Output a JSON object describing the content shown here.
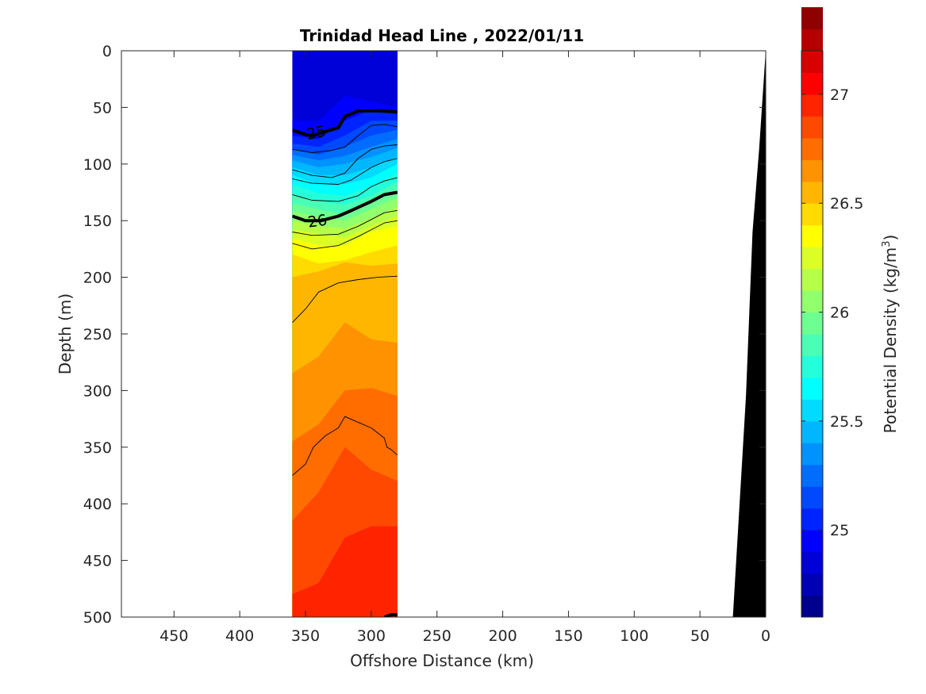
{
  "chart_data": {
    "type": "heatmap",
    "title": "Trinidad Head Line , 2022/01/11",
    "xlabel": "Offshore Distance (km)",
    "ylabel": "Depth (m)",
    "colorbar_label": "Potential Density (kg/m",
    "colorbar_label_sup": "3",
    "colorbar_label_end": ")",
    "xlim": [
      490,
      0
    ],
    "x_reversed": true,
    "ylim": [
      0,
      500
    ],
    "y_reversed": true,
    "x_ticks": [
      450,
      400,
      350,
      300,
      250,
      200,
      150,
      100,
      50,
      0
    ],
    "y_ticks": [
      0,
      50,
      100,
      150,
      200,
      250,
      300,
      350,
      400,
      450,
      500
    ],
    "colorbar_range": [
      24.6,
      27.2
    ],
    "colorbar_step": 0.1,
    "colorbar_ticks": [
      25,
      25.5,
      26,
      26.5,
      27
    ],
    "data_x_extent": [
      360,
      280
    ],
    "colormap": [
      "#00008f",
      "#0000b4",
      "#0000d9",
      "#0000ff",
      "#0024ff",
      "#0049ff",
      "#006dff",
      "#0092ff",
      "#00b6ff",
      "#00dbff",
      "#00ffff",
      "#24ffdb",
      "#49ffb6",
      "#6dff92",
      "#92ff6d",
      "#b6ff49",
      "#dbff24",
      "#ffff00",
      "#ffdb00",
      "#ffb600",
      "#ff9200",
      "#ff6d00",
      "#ff4900",
      "#ff2400",
      "#ff0000",
      "#d90000",
      "#b40000",
      "#8f0000"
    ],
    "fill_bands": [
      {
        "value": 24.85,
        "top_depths": [
          0,
          0,
          0,
          0,
          0
        ]
      },
      {
        "value": 24.95,
        "top_depths": [
          62,
          62,
          40,
          45,
          50
        ]
      },
      {
        "value": 25.05,
        "top_depths": [
          75,
          78,
          62,
          52,
          56
        ]
      },
      {
        "value": 25.15,
        "top_depths": [
          82,
          85,
          75,
          62,
          62
        ]
      },
      {
        "value": 25.25,
        "top_depths": [
          87,
          92,
          85,
          75,
          70
        ]
      },
      {
        "value": 25.35,
        "top_depths": [
          92,
          97,
          93,
          85,
          78
        ]
      },
      {
        "value": 25.45,
        "top_depths": [
          97,
          103,
          100,
          94,
          86
        ]
      },
      {
        "value": 25.55,
        "top_depths": [
          103,
          110,
          110,
          103,
          94
        ]
      },
      {
        "value": 25.65,
        "top_depths": [
          110,
          118,
          118,
          112,
          100
        ]
      },
      {
        "value": 25.75,
        "top_depths": [
          118,
          126,
          128,
          120,
          108
        ]
      },
      {
        "value": 25.85,
        "top_depths": [
          126,
          133,
          136,
          128,
          116
        ]
      },
      {
        "value": 25.95,
        "top_depths": [
          135,
          140,
          145,
          133,
          122
        ]
      },
      {
        "value": 26.05,
        "top_depths": [
          142,
          147,
          150,
          140,
          130
        ]
      },
      {
        "value": 26.15,
        "top_depths": [
          150,
          155,
          157,
          148,
          138
        ]
      },
      {
        "value": 26.25,
        "top_depths": [
          158,
          162,
          165,
          155,
          146
        ]
      },
      {
        "value": 26.35,
        "top_depths": [
          166,
          172,
          172,
          160,
          155
        ]
      },
      {
        "value": 26.45,
        "top_depths": [
          180,
          188,
          185,
          178,
          172
        ]
      },
      {
        "value": 26.55,
        "top_depths": [
          200,
          195,
          187,
          190,
          188
        ]
      },
      {
        "value": 26.65,
        "top_depths": [
          285,
          270,
          240,
          255,
          258
        ]
      },
      {
        "value": 26.75,
        "top_depths": [
          345,
          330,
          300,
          298,
          305
        ]
      },
      {
        "value": 26.85,
        "top_depths": [
          415,
          390,
          350,
          370,
          380
        ]
      },
      {
        "value": 26.95,
        "top_depths": [
          480,
          470,
          430,
          420,
          420
        ]
      }
    ],
    "band_x_positions": [
      360,
      340,
      320,
      300,
      280
    ],
    "contours": [
      {
        "level": 25,
        "bold": true,
        "label": "25",
        "label_x": 342,
        "label_y": 72,
        "points": [
          [
            360,
            70
          ],
          [
            350,
            74
          ],
          [
            345,
            75
          ],
          [
            334,
            71
          ],
          [
            325,
            68
          ],
          [
            320,
            58
          ],
          [
            310,
            53
          ],
          [
            295,
            53
          ],
          [
            280,
            54
          ]
        ]
      },
      {
        "level": 25.2,
        "bold": false,
        "points": [
          [
            360,
            87
          ],
          [
            345,
            90
          ],
          [
            330,
            88
          ],
          [
            320,
            85
          ],
          [
            310,
            75
          ],
          [
            300,
            66
          ],
          [
            290,
            65
          ],
          [
            280,
            67
          ]
        ]
      },
      {
        "level": 25.4,
        "bold": false,
        "points": [
          [
            360,
            105
          ],
          [
            345,
            110
          ],
          [
            330,
            112
          ],
          [
            320,
            108
          ],
          [
            310,
            95
          ],
          [
            300,
            87
          ],
          [
            290,
            84
          ],
          [
            280,
            83
          ]
        ]
      },
      {
        "level": 25.6,
        "bold": false,
        "points": [
          [
            360,
            113
          ],
          [
            345,
            117
          ],
          [
            325,
            118
          ],
          [
            315,
            114
          ],
          [
            300,
            103
          ],
          [
            290,
            98
          ],
          [
            280,
            95
          ]
        ]
      },
      {
        "level": 25.8,
        "bold": false,
        "points": [
          [
            360,
            127
          ],
          [
            345,
            132
          ],
          [
            325,
            133
          ],
          [
            310,
            128
          ],
          [
            300,
            120
          ],
          [
            290,
            115
          ],
          [
            280,
            112
          ]
        ]
      },
      {
        "level": 26,
        "bold": true,
        "label": "26",
        "label_x": 341,
        "label_y": 150,
        "points": [
          [
            360,
            146
          ],
          [
            350,
            150
          ],
          [
            338,
            150
          ],
          [
            325,
            146
          ],
          [
            315,
            141
          ],
          [
            300,
            133
          ],
          [
            290,
            127
          ],
          [
            280,
            125
          ]
        ]
      },
      {
        "level": 26.2,
        "bold": false,
        "points": [
          [
            360,
            160
          ],
          [
            345,
            163
          ],
          [
            325,
            162
          ],
          [
            310,
            155
          ],
          [
            300,
            149
          ],
          [
            290,
            143
          ],
          [
            280,
            141
          ]
        ]
      },
      {
        "level": 26.4,
        "bold": false,
        "points": [
          [
            360,
            170
          ],
          [
            345,
            175
          ],
          [
            325,
            172
          ],
          [
            310,
            164
          ],
          [
            300,
            158
          ],
          [
            290,
            152
          ],
          [
            280,
            150
          ]
        ]
      },
      {
        "level": 26.6,
        "bold": false,
        "points": [
          [
            360,
            240
          ],
          [
            350,
            228
          ],
          [
            340,
            213
          ],
          [
            325,
            205
          ],
          [
            310,
            202
          ],
          [
            295,
            200
          ],
          [
            280,
            199
          ]
        ]
      },
      {
        "level": 26.8,
        "bold": false,
        "points": [
          [
            360,
            375
          ],
          [
            350,
            365
          ],
          [
            344,
            350
          ],
          [
            335,
            340
          ],
          [
            325,
            333
          ],
          [
            320,
            323
          ],
          [
            310,
            328
          ],
          [
            300,
            333
          ],
          [
            290,
            342
          ],
          [
            288,
            350
          ],
          [
            285,
            352
          ],
          [
            280,
            357
          ]
        ]
      },
      {
        "level": 27,
        "bold": true,
        "points": [
          [
            290,
            500
          ],
          [
            285,
            498
          ],
          [
            280,
            498
          ]
        ]
      }
    ],
    "bathymetry": [
      [
        25,
        500
      ],
      [
        15,
        305
      ],
      [
        10,
        160
      ],
      [
        5,
        87
      ],
      [
        0,
        0
      ]
    ]
  }
}
